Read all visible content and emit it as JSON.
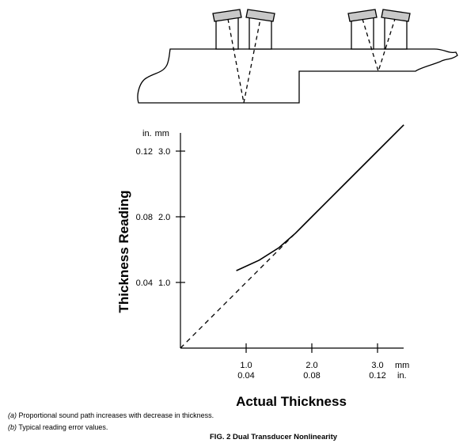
{
  "diagram": {
    "transducer_pairs": [
      {
        "name": "thick-section-pair",
        "path_style": "dashed-v"
      },
      {
        "name": "thin-section-pair",
        "path_style": "dashed-v"
      }
    ]
  },
  "chart_data": {
    "type": "line",
    "xlabel": "Actual Thickness",
    "ylabel": "Thickness Reading",
    "y_unit_header_in": "in.",
    "y_unit_header_mm": "mm",
    "x_unit_mm": "mm",
    "x_unit_in": "in.",
    "x_ticks": [
      {
        "mm": "1.0",
        "in": "0.04",
        "value": 1.0
      },
      {
        "mm": "2.0",
        "in": "0.08",
        "value": 2.0
      },
      {
        "mm": "3.0",
        "in": "0.12",
        "value": 3.0
      }
    ],
    "y_ticks": [
      {
        "in": "0.12",
        "mm": "3.0",
        "value": 3.0
      },
      {
        "in": "0.08",
        "mm": "2.0",
        "value": 2.0
      },
      {
        "in": "0.04",
        "mm": "1.0",
        "value": 1.0
      }
    ],
    "xlim": [
      0,
      3.4
    ],
    "ylim": [
      0,
      3.4
    ],
    "series": [
      {
        "style": "dashed",
        "x": [
          0,
          1.73
        ],
        "y": [
          0,
          1.73
        ]
      },
      {
        "style": "solid",
        "x": [
          0.85,
          1.2,
          1.5,
          1.75,
          2.0,
          2.5,
          3.0,
          3.4
        ],
        "y": [
          1.18,
          1.34,
          1.53,
          1.75,
          2.0,
          2.5,
          3.0,
          3.4
        ]
      }
    ]
  },
  "notes": [
    {
      "label": "(a)",
      "text": "Proportional sound path increases with decrease in thickness."
    },
    {
      "label": "(b)",
      "text": "Typical reading error values."
    }
  ],
  "caption": "FIG. 2 Dual Transducer Nonlinearity"
}
